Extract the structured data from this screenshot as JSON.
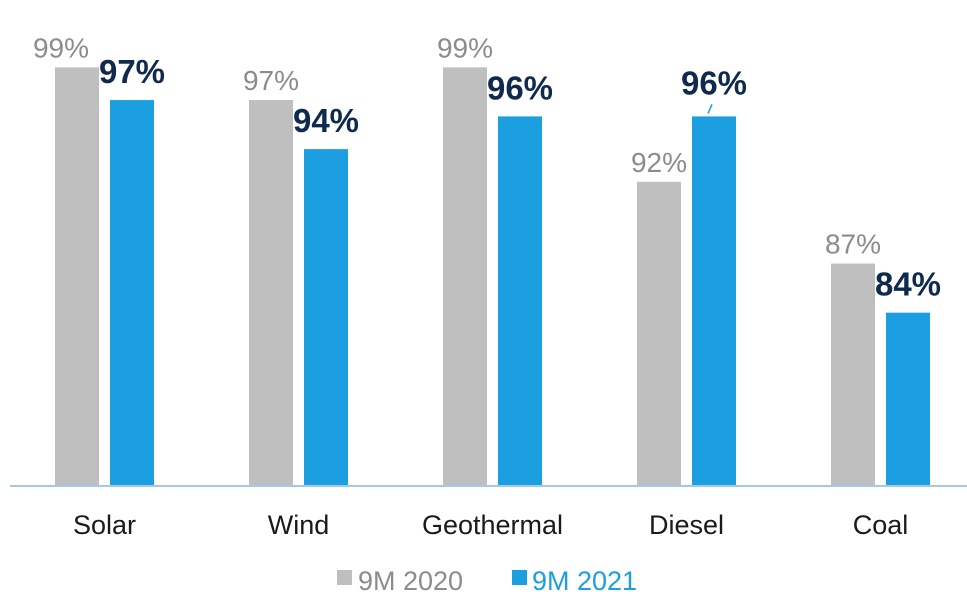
{
  "chart_data": {
    "type": "bar",
    "categories": [
      "Solar",
      "Wind",
      "Geothermal",
      "Diesel",
      "Coal"
    ],
    "series": [
      {
        "name": "9M 2020",
        "values": [
          99,
          97,
          99,
          92,
          87
        ],
        "labels": [
          "99%",
          "97%",
          "99%",
          "92%",
          "87%"
        ],
        "color": "#bfbfbf"
      },
      {
        "name": "9M 2021",
        "values": [
          97,
          94,
          96,
          96,
          84
        ],
        "labels": [
          "97%",
          "94%",
          "96%",
          "96%",
          "84%"
        ],
        "color": "#1b9fe0"
      }
    ],
    "ylim": [
      73.4,
      100
    ],
    "grid": false,
    "legend": "bottom",
    "axis_color": "#a6c8e6",
    "label_color_2021": "#0f2a4e"
  }
}
